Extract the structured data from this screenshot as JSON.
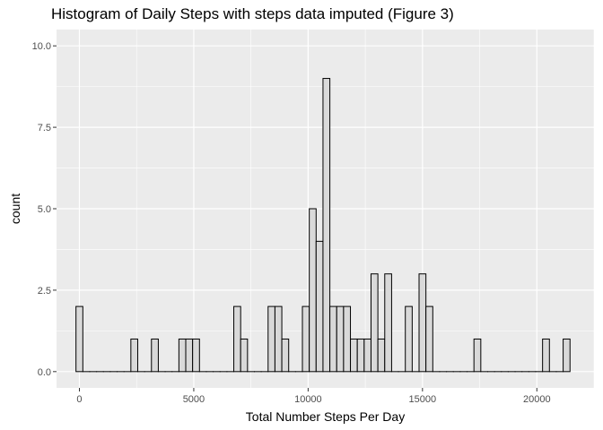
{
  "chart_data": {
    "type": "bar",
    "title": "Histogram of Daily Steps with steps data imputed (Figure 3)",
    "xlabel": "Total Number Steps Per Day",
    "ylabel": "count",
    "xlim": [
      -1000,
      22500
    ],
    "ylim": [
      -0.5,
      10.5
    ],
    "x_ticks": [
      0,
      5000,
      10000,
      15000,
      20000
    ],
    "x_tick_labels": [
      "0",
      "5000",
      "10000",
      "15000",
      "20000"
    ],
    "y_ticks": [
      0,
      2.5,
      5,
      7.5,
      10
    ],
    "y_tick_labels": [
      "0.0",
      "2.5",
      "5.0",
      "7.5",
      "10.0"
    ],
    "bin_width": 300,
    "bins_x": [
      0,
      300,
      600,
      900,
      1200,
      1500,
      1800,
      2100,
      2400,
      2700,
      3000,
      3300,
      3600,
      3900,
      4200,
      4500,
      4800,
      5100,
      5400,
      5700,
      6000,
      6300,
      6600,
      6900,
      7200,
      7500,
      7800,
      8100,
      8400,
      8700,
      9000,
      9300,
      9600,
      9900,
      10200,
      10500,
      10800,
      11100,
      11400,
      11700,
      12000,
      12300,
      12600,
      12900,
      13200,
      13500,
      13800,
      14100,
      14400,
      14700,
      15000,
      15300,
      15600,
      15900,
      16200,
      16500,
      16800,
      17100,
      17400,
      17700,
      18000,
      18300,
      18600,
      18900,
      19200,
      19500,
      19800,
      20100,
      20400,
      20700,
      21000,
      21300
    ],
    "counts": [
      2,
      0,
      0,
      0,
      0,
      0,
      0,
      0,
      1,
      0,
      0,
      1,
      0,
      0,
      0,
      1,
      1,
      1,
      0,
      0,
      0,
      0,
      0,
      2,
      1,
      0,
      0,
      0,
      2,
      2,
      1,
      0,
      0,
      2,
      5,
      4,
      9,
      2,
      2,
      2,
      1,
      1,
      1,
      3,
      1,
      3,
      0,
      0,
      2,
      0,
      3,
      2,
      0,
      0,
      0,
      0,
      0,
      0,
      1,
      0,
      0,
      0,
      0,
      0,
      0,
      0,
      0,
      0,
      1,
      0,
      0,
      1
    ],
    "grid": true,
    "legend": "none",
    "bar_fill": "#d9d9d9",
    "bar_stroke": "#000000",
    "panel_background": "#ebebeb",
    "grid_color": "#ffffff"
  }
}
